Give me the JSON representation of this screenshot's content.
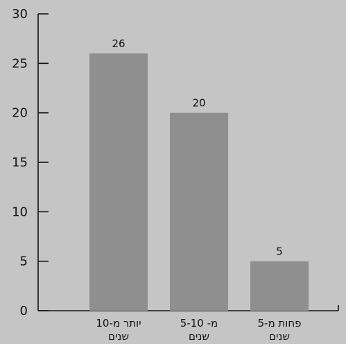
{
  "chart_data": {
    "type": "bar",
    "categories": [
      [
        "יותר מ-10",
        "שנים"
      ],
      [
        "מ- 5-10",
        "שנים"
      ],
      [
        "פחות מ-5",
        "שנים"
      ]
    ],
    "values": [
      26,
      20,
      5
    ],
    "data_labels": [
      "26",
      "20",
      "5"
    ],
    "ylim": [
      0,
      30
    ],
    "yticks": [
      0,
      5,
      10,
      15,
      20,
      25,
      30
    ],
    "title": "",
    "xlabel": "",
    "ylabel": "",
    "grid": false,
    "bar_color": "#8f8f8f",
    "axis_color": "#111111",
    "background_color": "#c5c5c5"
  }
}
